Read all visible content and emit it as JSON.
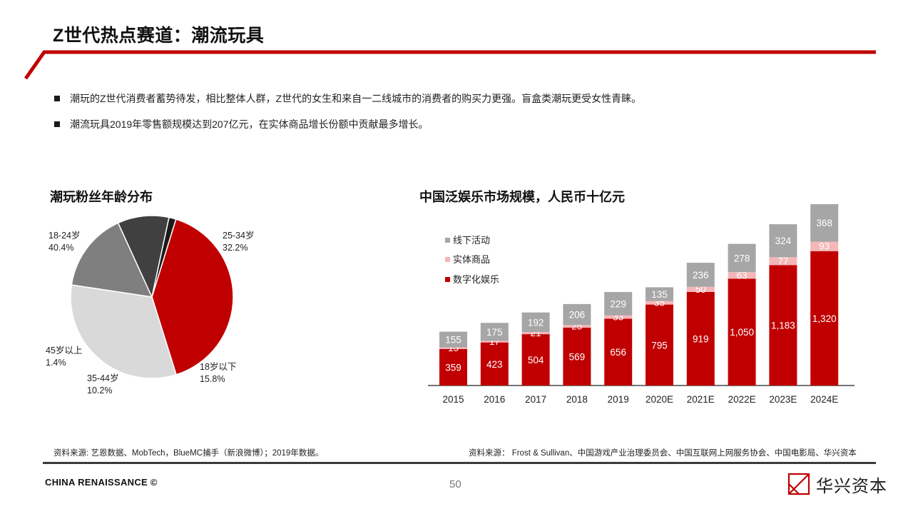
{
  "header": {
    "title": "Z世代热点赛道：潮流玩具"
  },
  "bullets": [
    "潮玩的Z世代消费者蓄势待发，相比整体人群，Z世代的女生和来自一二线城市的消费者的购买力更强。盲盒类潮玩更受女性青睐。",
    "潮流玩具2019年零售额规模达到207亿元，在实体商品增长份额中贡献最多增长。"
  ],
  "colors": {
    "brand_red": "#c00000",
    "light_gray": "#d9d9d9",
    "mid_gray": "#7f7f7f",
    "dark_gray": "#404040",
    "black": "#1a1a1a",
    "pink": "#f4b6b8",
    "gray": "#a6a6a6"
  },
  "chart_data": [
    {
      "type": "pie",
      "title": "潮玩粉丝年龄分布",
      "slices": [
        {
          "label": "18-24岁",
          "value": 40.4,
          "pct": "40.4%",
          "color": "#c00000"
        },
        {
          "label": "25-34岁",
          "value": 32.2,
          "pct": "32.2%",
          "color": "#d9d9d9"
        },
        {
          "label": "18岁以下",
          "value": 15.8,
          "pct": "15.8%",
          "color": "#7f7f7f"
        },
        {
          "label": "35-44岁",
          "value": 10.2,
          "pct": "10.2%",
          "color": "#404040"
        },
        {
          "label": "45岁以上",
          "value": 1.4,
          "pct": "1.4%",
          "color": "#1a1a1a"
        }
      ]
    },
    {
      "type": "bar",
      "stacked": true,
      "title": "中国泛娱乐市场规模，人民币十亿元",
      "categories": [
        "2015",
        "2016",
        "2017",
        "2018",
        "2019",
        "2020E",
        "2021E",
        "2022E",
        "2023E",
        "2024E"
      ],
      "series": [
        {
          "name": "数字化娱乐",
          "color": "#c00000",
          "values": [
            359,
            423,
            504,
            569,
            656,
            795,
            919,
            1050,
            1183,
            1320
          ],
          "labels": [
            "359",
            "423",
            "504",
            "569",
            "656",
            "795",
            "919",
            "1,050",
            "1,183",
            "1,320"
          ]
        },
        {
          "name": "实体商品",
          "color": "#f4b6b8",
          "values": [
            15,
            17,
            21,
            25,
            33,
            35,
            50,
            63,
            77,
            93
          ],
          "labels": [
            "15",
            "17",
            "21",
            "25",
            "33",
            "35",
            "50",
            "63",
            "77",
            "93"
          ]
        },
        {
          "name": "线下活动",
          "color": "#a6a6a6",
          "values": [
            155,
            175,
            192,
            206,
            229,
            135,
            236,
            278,
            324,
            368
          ],
          "labels": [
            "155",
            "175",
            "192",
            "206",
            "229",
            "135",
            "236",
            "278",
            "324",
            "368"
          ]
        }
      ],
      "legend_order": [
        "线下活动",
        "实体商品",
        "数字化娱乐"
      ],
      "ylim": [
        0,
        1800
      ]
    }
  ],
  "sources": {
    "left": "资料来源: 艺恩数据、MobTech，BlueMC捕手（新浪微博）；2019年数据。",
    "right": "资料来源： Frost & Sullivan、中国游戏产业治理委员会、中国互联网上网服务协会、中国电影局、华兴资本"
  },
  "footer": {
    "brand": "CHINA RENAISSANCE ©",
    "page": "50",
    "logo_text": "华兴资本"
  }
}
